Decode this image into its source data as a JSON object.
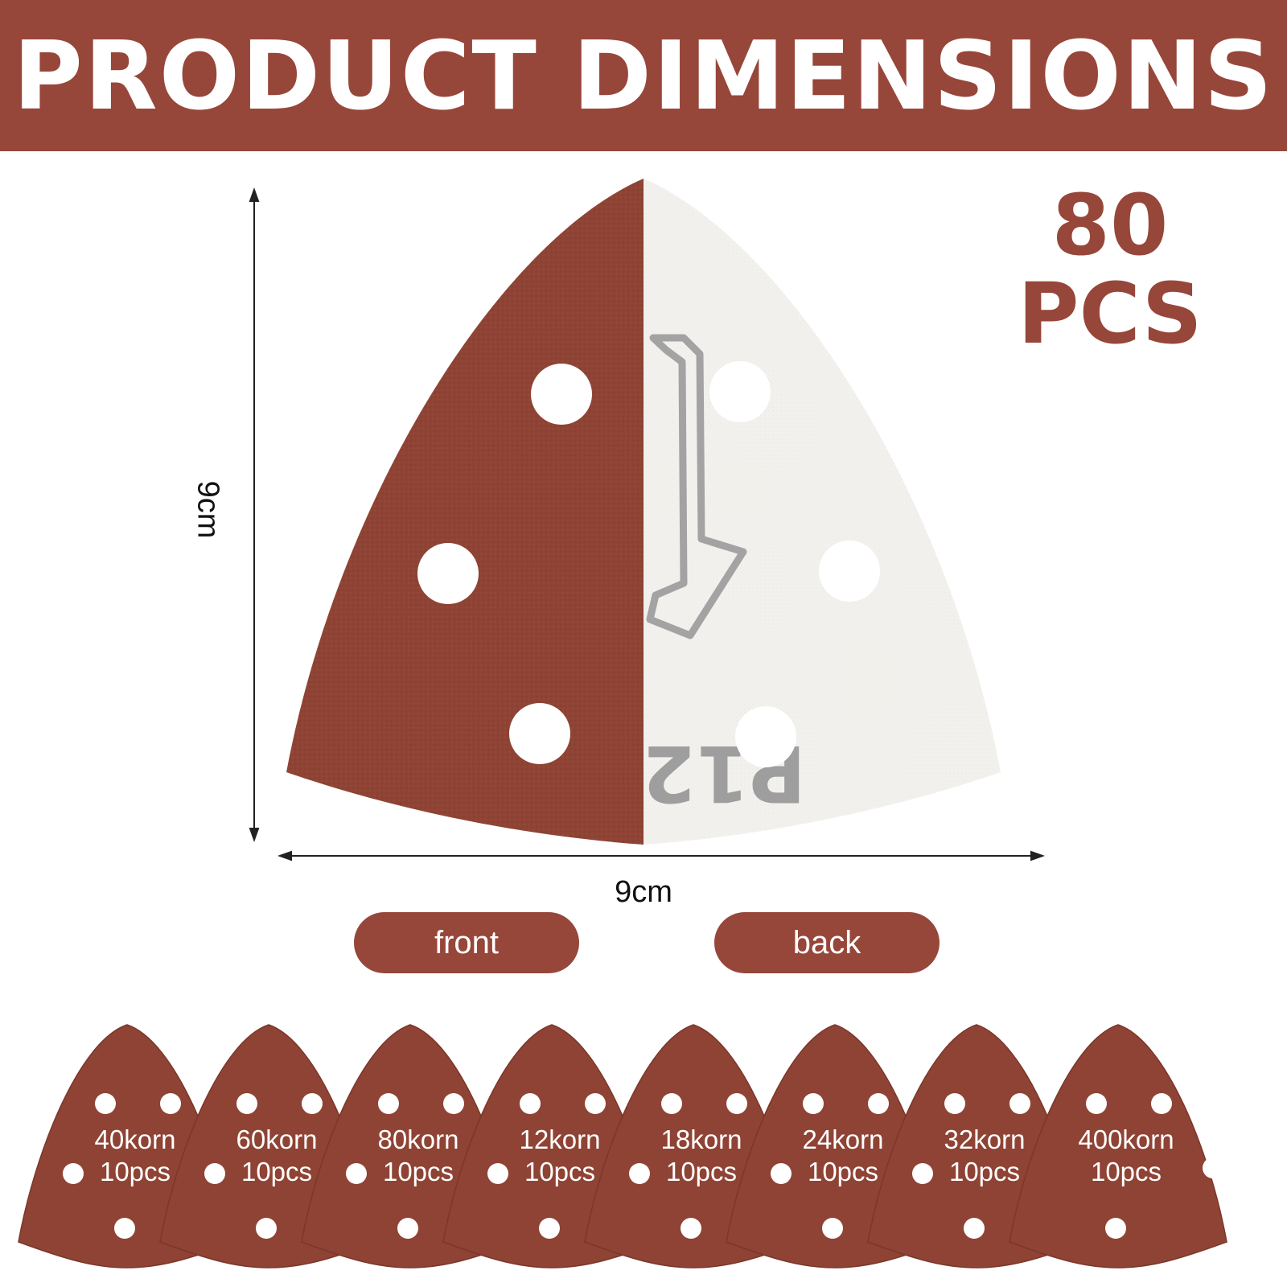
{
  "colors": {
    "brand": "#97463a",
    "paper_back": "#f4f2ee",
    "hole": "#ffffff"
  },
  "header": {
    "title": "PRODUCT DIMENSIONS"
  },
  "count": {
    "number": "80",
    "unit": "PCS"
  },
  "dimensions": {
    "height_label": "9cm",
    "width_label": "9cm"
  },
  "sides": {
    "front_label": "front",
    "back_label": "back"
  },
  "back_print": {
    "grit_text": "P12"
  },
  "grits": [
    {
      "grit": "40korn",
      "qty": "10pcs"
    },
    {
      "grit": "60korn",
      "qty": "10pcs"
    },
    {
      "grit": "80korn",
      "qty": "10pcs"
    },
    {
      "grit": "12korn",
      "qty": "10pcs"
    },
    {
      "grit": "18korn",
      "qty": "10pcs"
    },
    {
      "grit": "24korn",
      "qty": "10pcs"
    },
    {
      "grit": "32korn",
      "qty": "10pcs"
    },
    {
      "grit": "400korn",
      "qty": "10pcs"
    }
  ]
}
